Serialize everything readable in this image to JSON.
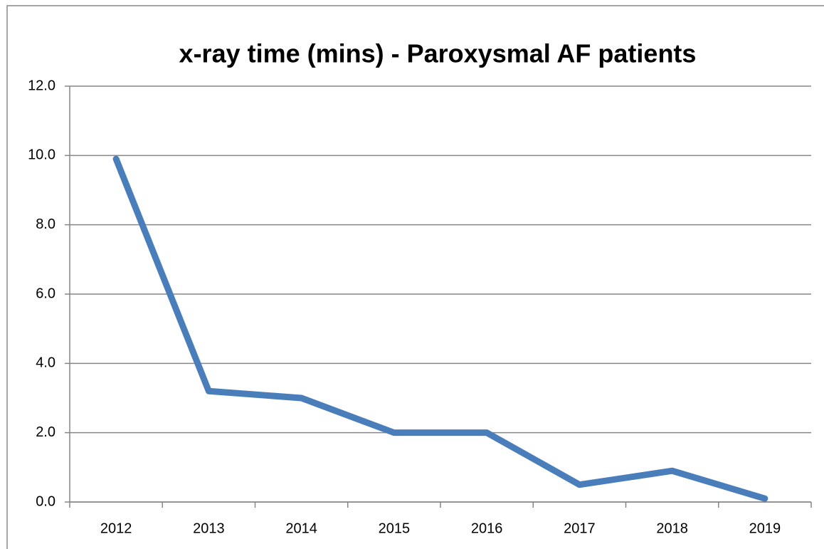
{
  "chart_data": {
    "type": "line",
    "title": "x-ray time (mins) - Paroxysmal AF patients",
    "categories": [
      "2012",
      "2013",
      "2014",
      "2015",
      "2016",
      "2017",
      "2018",
      "2019"
    ],
    "series": [
      {
        "name": "x-ray time (mins)",
        "color": "#4a7ebb",
        "values": [
          9.9,
          3.2,
          3.0,
          2.0,
          2.0,
          0.5,
          0.9,
          0.1
        ]
      }
    ],
    "ylim": [
      0,
      12
    ],
    "yticks": [
      {
        "value": 0,
        "label": "0.0"
      },
      {
        "value": 2,
        "label": "2.0"
      },
      {
        "value": 4,
        "label": "4.0"
      },
      {
        "value": 6,
        "label": "6.0"
      },
      {
        "value": 8,
        "label": "8.0"
      },
      {
        "value": 10,
        "label": "10.0"
      },
      {
        "value": 12,
        "label": "12.0"
      }
    ],
    "grid": true,
    "legend": false
  }
}
